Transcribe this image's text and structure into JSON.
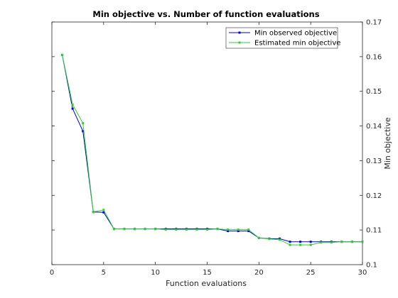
{
  "chart_data": {
    "type": "line",
    "title": "Min objective vs. Number of function evaluations",
    "xlabel": "Function evaluations",
    "ylabel": "Min objective",
    "xlim": [
      0,
      30
    ],
    "ylim": [
      0.1,
      0.17
    ],
    "xticks": [
      "0",
      "5",
      "10",
      "15",
      "20",
      "25",
      "30"
    ],
    "yticks": [
      "0.1",
      "0.11",
      "0.12",
      "0.13",
      "0.14",
      "0.15",
      "0.16",
      "0.17"
    ],
    "grid": false,
    "legend_position": "top-right",
    "x": [
      1,
      2,
      3,
      4,
      5,
      6,
      7,
      8,
      9,
      10,
      11,
      12,
      13,
      14,
      15,
      16,
      17,
      18,
      19,
      20,
      21,
      22,
      23,
      24,
      25,
      26,
      27,
      28,
      29,
      30
    ],
    "series": [
      {
        "name": "Min observed objective",
        "color": "#0000cc",
        "values": [
          0.1605,
          0.145,
          0.1385,
          0.1152,
          0.1151,
          0.1103,
          0.1103,
          0.1103,
          0.1103,
          0.1103,
          0.1103,
          0.1103,
          0.1103,
          0.1103,
          0.1103,
          0.1103,
          0.1097,
          0.1097,
          0.1097,
          0.1077,
          0.1075,
          0.1075,
          0.1066,
          0.1066,
          0.1066,
          0.1066,
          0.1066,
          0.1066,
          0.1066,
          0.1066
        ]
      },
      {
        "name": "Estimated min objective",
        "color": "#33cc33",
        "values": [
          0.1605,
          0.1462,
          0.1408,
          0.1152,
          0.1158,
          0.1103,
          0.1103,
          0.1103,
          0.1103,
          0.1103,
          0.1101,
          0.1101,
          0.1101,
          0.1101,
          0.1101,
          0.1103,
          0.1101,
          0.1101,
          0.1101,
          0.1077,
          0.1074,
          0.1072,
          0.1057,
          0.1057,
          0.1057,
          0.1064,
          0.1064,
          0.1066,
          0.1066,
          0.1066
        ]
      }
    ]
  }
}
